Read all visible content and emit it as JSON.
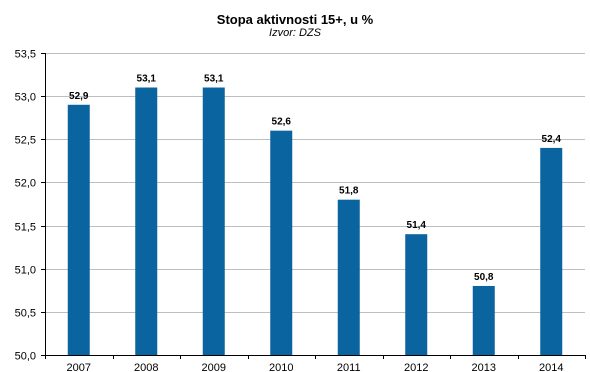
{
  "chart_data": {
    "type": "bar",
    "title": "Stopa aktivnosti 15+, u %",
    "subtitle": "Izvor: DZS",
    "categories": [
      "2007",
      "2008",
      "2009",
      "2010",
      "2011",
      "2012",
      "2013",
      "2014"
    ],
    "values": [
      52.9,
      53.1,
      53.1,
      52.6,
      51.8,
      51.4,
      50.8,
      52.4
    ],
    "data_labels": [
      "52,9",
      "53,1",
      "53,1",
      "52,6",
      "51,8",
      "51,4",
      "50,8",
      "52,4"
    ],
    "ylim": [
      50.0,
      53.5
    ],
    "yticks": [
      50.0,
      50.5,
      51.0,
      51.5,
      52.0,
      52.5,
      53.0,
      53.5
    ],
    "ytick_labels": [
      "50,0",
      "50,5",
      "51,0",
      "51,5",
      "52,0",
      "52,5",
      "53,0",
      "53,5"
    ],
    "xlabel": "",
    "ylabel": "",
    "grid": true,
    "legend": "none",
    "bar_color": "#0A64A0"
  }
}
